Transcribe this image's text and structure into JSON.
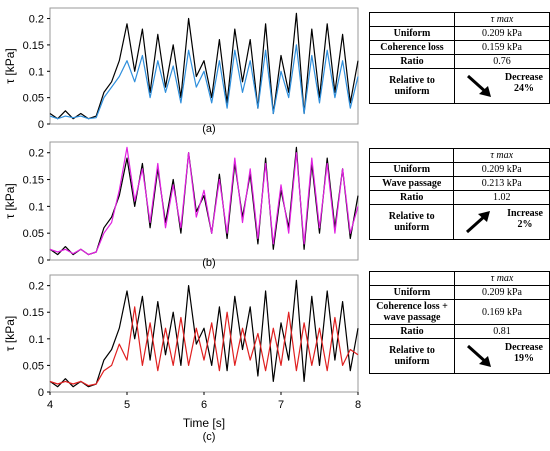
{
  "chart_data": [
    {
      "type": "line",
      "panel_label": "(a)",
      "ylabel": "τ  [kPa]",
      "xlim": [
        4,
        8
      ],
      "ylim": [
        0,
        0.22
      ],
      "yticks": [
        "0",
        "0.05",
        "0.1",
        "0.15",
        "0.2"
      ],
      "x": [
        4.0,
        4.1,
        4.2,
        4.3,
        4.4,
        4.5,
        4.6,
        4.7,
        4.8,
        4.9,
        5.0,
        5.1,
        5.2,
        5.3,
        5.4,
        5.5,
        5.6,
        5.7,
        5.8,
        5.9,
        6.0,
        6.1,
        6.2,
        6.3,
        6.4,
        6.5,
        6.6,
        6.7,
        6.8,
        6.9,
        7.0,
        7.1,
        7.2,
        7.3,
        7.4,
        7.5,
        7.6,
        7.7,
        7.8,
        7.9,
        8.0
      ],
      "series": [
        {
          "color": "#000000",
          "values": [
            0.02,
            0.01,
            0.025,
            0.01,
            0.02,
            0.01,
            0.015,
            0.06,
            0.08,
            0.12,
            0.19,
            0.1,
            0.18,
            0.06,
            0.17,
            0.07,
            0.15,
            0.05,
            0.2,
            0.09,
            0.12,
            0.05,
            0.16,
            0.04,
            0.18,
            0.08,
            0.16,
            0.03,
            0.19,
            0.02,
            0.13,
            0.06,
            0.21,
            0.02,
            0.18,
            0.05,
            0.19,
            0.06,
            0.17,
            0.04,
            0.12
          ]
        },
        {
          "color": "#2f8fdc",
          "values": [
            0.015,
            0.01,
            0.015,
            0.012,
            0.015,
            0.01,
            0.012,
            0.05,
            0.07,
            0.09,
            0.12,
            0.08,
            0.13,
            0.05,
            0.12,
            0.06,
            0.11,
            0.04,
            0.14,
            0.07,
            0.1,
            0.04,
            0.12,
            0.03,
            0.14,
            0.06,
            0.12,
            0.03,
            0.14,
            0.02,
            0.1,
            0.05,
            0.15,
            0.02,
            0.13,
            0.04,
            0.14,
            0.05,
            0.12,
            0.03,
            0.09
          ]
        }
      ]
    },
    {
      "type": "line",
      "panel_label": "(b)",
      "ylabel": "τ  [kPa]",
      "xlim": [
        4,
        8
      ],
      "ylim": [
        0,
        0.22
      ],
      "yticks": [
        "0",
        "0.05",
        "0.1",
        "0.15",
        "0.2"
      ],
      "x": [
        4.0,
        4.1,
        4.2,
        4.3,
        4.4,
        4.5,
        4.6,
        4.7,
        4.8,
        4.9,
        5.0,
        5.1,
        5.2,
        5.3,
        5.4,
        5.5,
        5.6,
        5.7,
        5.8,
        5.9,
        6.0,
        6.1,
        6.2,
        6.3,
        6.4,
        6.5,
        6.6,
        6.7,
        6.8,
        6.9,
        7.0,
        7.1,
        7.2,
        7.3,
        7.4,
        7.5,
        7.6,
        7.7,
        7.8,
        7.9,
        8.0
      ],
      "series": [
        {
          "color": "#000000",
          "values": [
            0.02,
            0.01,
            0.025,
            0.01,
            0.02,
            0.01,
            0.015,
            0.06,
            0.08,
            0.12,
            0.19,
            0.1,
            0.18,
            0.06,
            0.17,
            0.07,
            0.15,
            0.05,
            0.2,
            0.09,
            0.12,
            0.05,
            0.16,
            0.04,
            0.18,
            0.08,
            0.16,
            0.03,
            0.19,
            0.02,
            0.13,
            0.06,
            0.21,
            0.02,
            0.18,
            0.05,
            0.19,
            0.06,
            0.17,
            0.04,
            0.12
          ]
        },
        {
          "color": "#e020e0",
          "values": [
            0.02,
            0.015,
            0.02,
            0.012,
            0.02,
            0.01,
            0.015,
            0.05,
            0.07,
            0.13,
            0.21,
            0.11,
            0.17,
            0.07,
            0.18,
            0.06,
            0.14,
            0.06,
            0.2,
            0.08,
            0.13,
            0.05,
            0.15,
            0.05,
            0.19,
            0.07,
            0.17,
            0.04,
            0.18,
            0.03,
            0.14,
            0.05,
            0.2,
            0.03,
            0.19,
            0.06,
            0.18,
            0.05,
            0.17,
            0.05,
            0.1
          ]
        }
      ]
    },
    {
      "type": "line",
      "panel_label": "(c)",
      "ylabel": "τ  [kPa]",
      "xlabel": "Time [s]",
      "xlim": [
        4,
        8
      ],
      "ylim": [
        0,
        0.22
      ],
      "xticks": [
        "4",
        "5",
        "6",
        "7",
        "8"
      ],
      "yticks": [
        "0",
        "0.05",
        "0.1",
        "0.15",
        "0.2"
      ],
      "x": [
        4.0,
        4.1,
        4.2,
        4.3,
        4.4,
        4.5,
        4.6,
        4.7,
        4.8,
        4.9,
        5.0,
        5.1,
        5.2,
        5.3,
        5.4,
        5.5,
        5.6,
        5.7,
        5.8,
        5.9,
        6.0,
        6.1,
        6.2,
        6.3,
        6.4,
        6.5,
        6.6,
        6.7,
        6.8,
        6.9,
        7.0,
        7.1,
        7.2,
        7.3,
        7.4,
        7.5,
        7.6,
        7.7,
        7.8,
        7.9,
        8.0
      ],
      "series": [
        {
          "color": "#000000",
          "values": [
            0.02,
            0.01,
            0.025,
            0.01,
            0.02,
            0.01,
            0.015,
            0.06,
            0.08,
            0.12,
            0.19,
            0.1,
            0.18,
            0.06,
            0.17,
            0.07,
            0.15,
            0.05,
            0.2,
            0.09,
            0.12,
            0.05,
            0.16,
            0.04,
            0.18,
            0.08,
            0.16,
            0.03,
            0.19,
            0.02,
            0.13,
            0.06,
            0.21,
            0.02,
            0.18,
            0.05,
            0.19,
            0.06,
            0.17,
            0.04,
            0.12
          ]
        },
        {
          "color": "#e02020",
          "values": [
            0.02,
            0.015,
            0.02,
            0.015,
            0.02,
            0.012,
            0.015,
            0.04,
            0.05,
            0.09,
            0.06,
            0.16,
            0.05,
            0.13,
            0.04,
            0.12,
            0.05,
            0.14,
            0.05,
            0.12,
            0.06,
            0.13,
            0.04,
            0.15,
            0.05,
            0.12,
            0.06,
            0.11,
            0.04,
            0.12,
            0.05,
            0.15,
            0.04,
            0.13,
            0.05,
            0.12,
            0.04,
            0.14,
            0.05,
            0.08,
            0.07
          ]
        }
      ]
    }
  ],
  "tables": [
    {
      "header": "τ max",
      "rows": [
        {
          "label": "Uniform",
          "value": "0.209 kPa"
        },
        {
          "label": "Coherence loss",
          "value": "0.159 kPa"
        },
        {
          "label": "Ratio",
          "value": "0.76"
        },
        {
          "label": "Relative to uniform",
          "direction": "down",
          "change_word": "Decrease",
          "change_pct": "24%"
        }
      ]
    },
    {
      "header": "τ max",
      "rows": [
        {
          "label": "Uniform",
          "value": "0.209 kPa"
        },
        {
          "label": "Wave passage",
          "value": "0.213 kPa"
        },
        {
          "label": "Ratio",
          "value": "1.02"
        },
        {
          "label": "Relative to uniform",
          "direction": "up",
          "change_word": "Increase",
          "change_pct": "2%"
        }
      ]
    },
    {
      "header": "τ max",
      "rows": [
        {
          "label": "Uniform",
          "value": "0.209 kPa"
        },
        {
          "label": "Coherence loss + wave passage",
          "value": "0.169 kPa"
        },
        {
          "label": "Ratio",
          "value": "0.81"
        },
        {
          "label": "Relative to uniform",
          "direction": "down",
          "change_word": "Decrease",
          "change_pct": "19%"
        }
      ]
    }
  ]
}
